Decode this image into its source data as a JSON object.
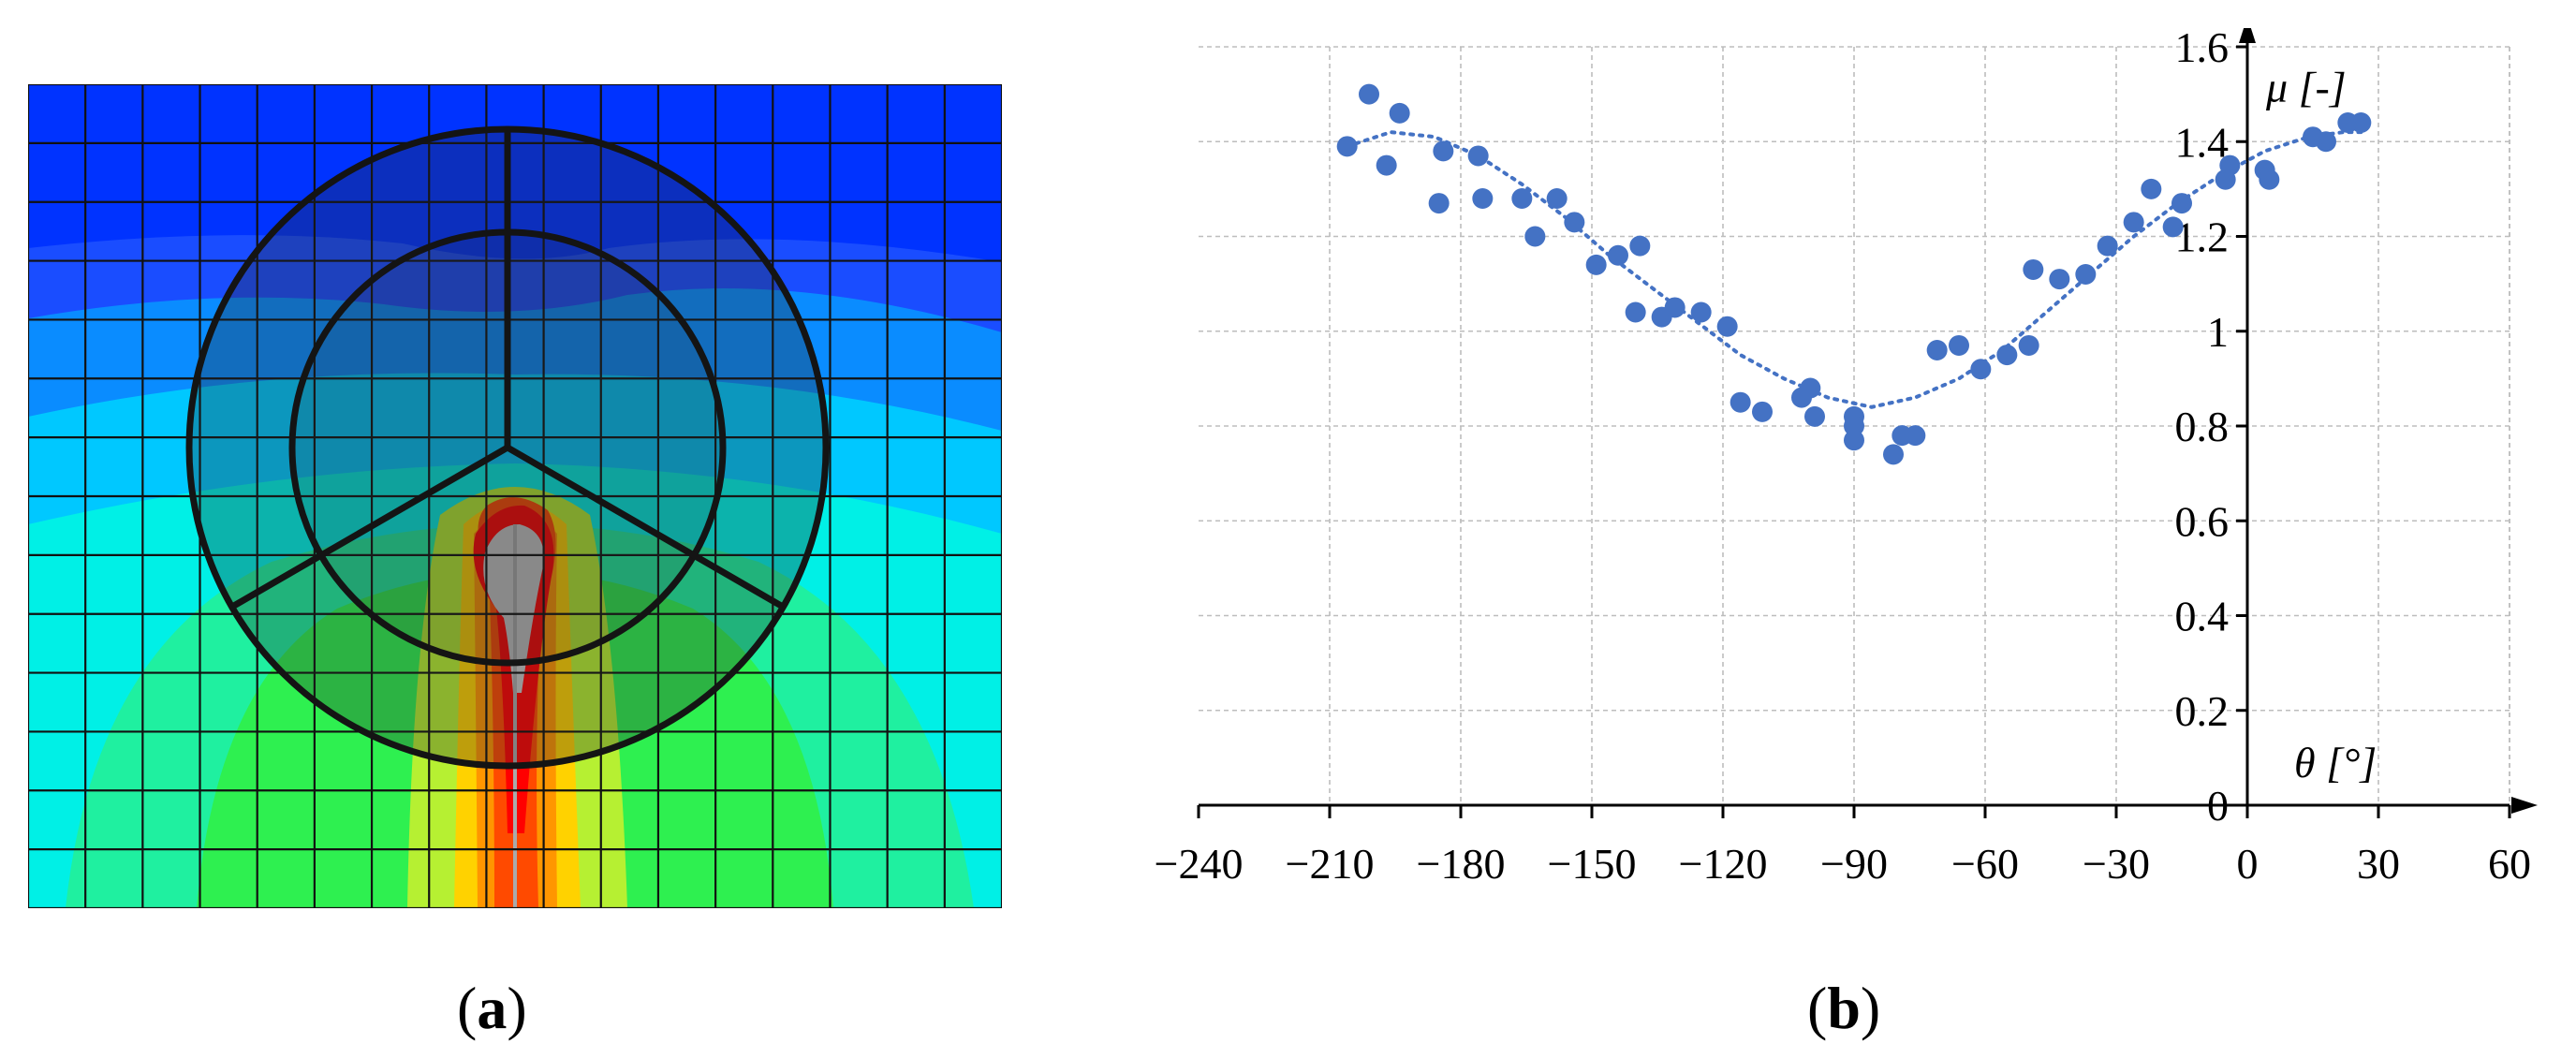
{
  "panel_labels": {
    "a": "a",
    "b": "b"
  },
  "colors": {
    "background_field": "#0033ff",
    "band_1": "#1a4dff",
    "band_2": "#0a8cff",
    "band_3": "#00c8ff",
    "band_4": "#00f0e6",
    "band_5": "#1ff0a0",
    "band_6": "#2ef050",
    "band_7": "#b6f032",
    "band_8": "#ffd200",
    "band_9": "#ff9600",
    "band_10": "#ff4a00",
    "band_11": "#ff0000",
    "core": "#c8c8c8",
    "points": "#4472c4",
    "trend": "#4472c4"
  },
  "chart_data": {
    "type": "scatter",
    "title": "",
    "xlabel": "θ [°]",
    "ylabel": "μ [-]",
    "xlim": [
      -240,
      60
    ],
    "ylim": [
      0,
      1.6
    ],
    "x_ticks": [
      -240,
      -210,
      -180,
      -150,
      -120,
      -90,
      -60,
      -30,
      0,
      30,
      60
    ],
    "y_ticks": [
      0,
      0.2,
      0.4,
      0.6,
      0.8,
      1,
      1.2,
      1.4,
      1.6
    ],
    "x_tick_labels": [
      "−240",
      "−210",
      "−180",
      "−150",
      "−120",
      "−90",
      "−60",
      "−30",
      "0",
      "30",
      "60"
    ],
    "y_tick_labels": [
      "0",
      "0.2",
      "0.4",
      "0.6",
      "0.8",
      "1",
      "1.2",
      "1.4",
      "1.6"
    ],
    "grid": true,
    "series": [
      {
        "points": [
          [
            -206,
            1.39
          ],
          [
            -201,
            1.5
          ],
          [
            -197,
            1.35
          ],
          [
            -194,
            1.46
          ],
          [
            -185,
            1.27
          ],
          [
            -184,
            1.38
          ],
          [
            -176,
            1.37
          ],
          [
            -175,
            1.28
          ],
          [
            -166,
            1.28
          ],
          [
            -163,
            1.2
          ],
          [
            -158,
            1.28
          ],
          [
            -154,
            1.23
          ],
          [
            -149,
            1.14
          ],
          [
            -144,
            1.16
          ],
          [
            -140,
            1.04
          ],
          [
            -139,
            1.18
          ],
          [
            -134,
            1.03
          ],
          [
            -131,
            1.05
          ],
          [
            -125,
            1.04
          ],
          [
            -119,
            1.01
          ],
          [
            -116,
            0.85
          ],
          [
            -111,
            0.83
          ],
          [
            -102,
            0.86
          ],
          [
            -100,
            0.88
          ],
          [
            -99,
            0.82
          ],
          [
            -90,
            0.82
          ],
          [
            -90,
            0.8
          ],
          [
            -90,
            0.77
          ],
          [
            -81,
            0.74
          ],
          [
            -79,
            0.78
          ],
          [
            -76,
            0.78
          ],
          [
            -71,
            0.96
          ],
          [
            -66,
            0.97
          ],
          [
            -61,
            0.92
          ],
          [
            -55,
            0.95
          ],
          [
            -50,
            0.97
          ],
          [
            -49,
            1.13
          ],
          [
            -43,
            1.11
          ],
          [
            -37,
            1.12
          ],
          [
            -32,
            1.18
          ],
          [
            -26,
            1.23
          ],
          [
            -22,
            1.3
          ],
          [
            -17,
            1.22
          ],
          [
            -15,
            1.27
          ],
          [
            -5,
            1.32
          ],
          [
            -4,
            1.35
          ],
          [
            4,
            1.34
          ],
          [
            5,
            1.32
          ],
          [
            15,
            1.41
          ],
          [
            18,
            1.4
          ],
          [
            23,
            1.44
          ],
          [
            26,
            1.44
          ]
        ]
      }
    ],
    "trendline": {
      "style": "dotted",
      "points": [
        [
          -206,
          1.39
        ],
        [
          -196,
          1.42
        ],
        [
          -186,
          1.41
        ],
        [
          -176,
          1.37
        ],
        [
          -166,
          1.31
        ],
        [
          -156,
          1.24
        ],
        [
          -146,
          1.16
        ],
        [
          -136,
          1.09
        ],
        [
          -126,
          1.02
        ],
        [
          -116,
          0.95
        ],
        [
          -106,
          0.9
        ],
        [
          -96,
          0.86
        ],
        [
          -86,
          0.84
        ],
        [
          -76,
          0.86
        ],
        [
          -66,
          0.9
        ],
        [
          -56,
          0.96
        ],
        [
          -46,
          1.04
        ],
        [
          -36,
          1.12
        ],
        [
          -26,
          1.2
        ],
        [
          -16,
          1.27
        ],
        [
          -6,
          1.33
        ],
        [
          4,
          1.38
        ],
        [
          14,
          1.41
        ],
        [
          22,
          1.42
        ],
        [
          26,
          1.42
        ]
      ]
    }
  }
}
